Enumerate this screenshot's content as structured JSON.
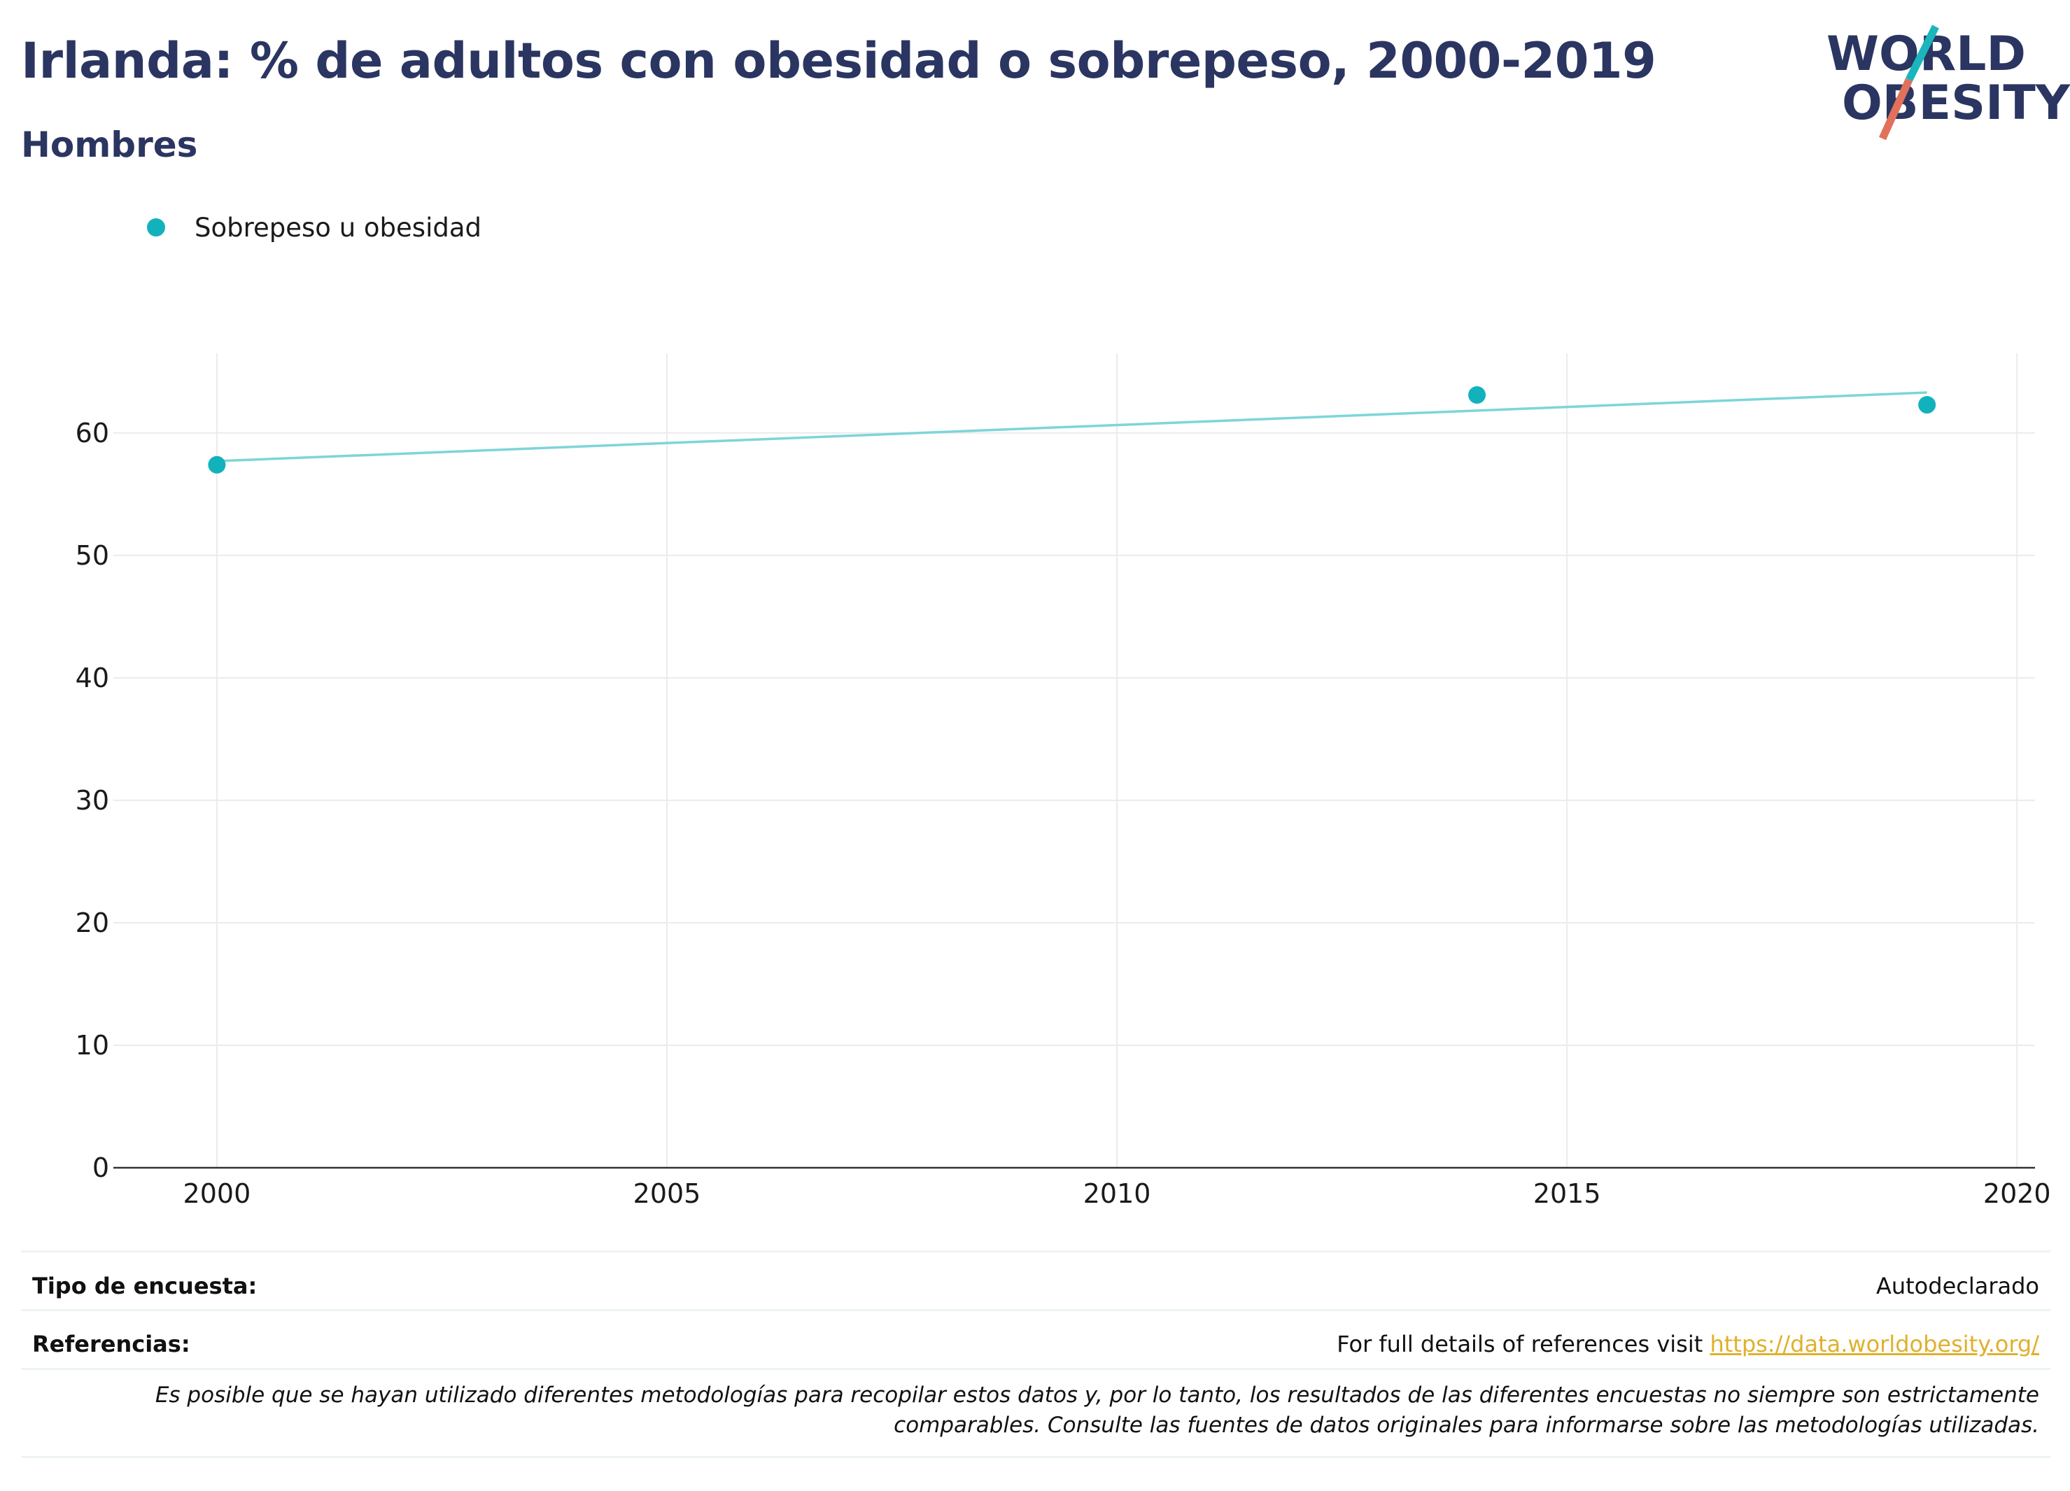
{
  "title": "Irlanda: % de adultos con obesidad o sobrepeso, 2000-2019",
  "subtitle": "Hombres",
  "logo": {
    "line1": "WORLD",
    "line2": "OBESITY",
    "colors": {
      "text": "#2b3561",
      "slash_teal": "#1ab5bd",
      "slash_red": "#e2715c"
    }
  },
  "legend": {
    "label": "Sobrepeso u obesidad",
    "color": "#12b2bd"
  },
  "chart_data": {
    "type": "scatter",
    "series": [
      {
        "name": "Sobrepeso u obesidad",
        "x": [
          2000,
          2014,
          2019
        ],
        "y": [
          57.4,
          63.1,
          62.3
        ],
        "color": "#12b2bd"
      }
    ],
    "trendline": {
      "x": [
        2000,
        2019
      ],
      "y": [
        57.7,
        63.3
      ],
      "color": "#7dd5d9"
    },
    "xlim": [
      1998.85,
      2020.2
    ],
    "ylim": [
      0,
      66.5
    ],
    "x_ticks": [
      2000,
      2005,
      2010,
      2015,
      2020
    ],
    "y_ticks": [
      0,
      10,
      20,
      30,
      40,
      50,
      60
    ],
    "grid": true,
    "legend_position": "top-left"
  },
  "footer": {
    "survey_type_label": "Tipo de encuesta:",
    "survey_type_value": "Autodeclarado",
    "references_label": "Referencias:",
    "references_text": "For full details of references visit ",
    "references_link": "https://data.worldobesity.org/",
    "disclaimer_line1": "Es posible que se hayan utilizado diferentes metodologías para recopilar estos datos y, por lo tanto, los resultados de las diferentes encuestas no siempre son estrictamente",
    "disclaimer_line2": "comparables. Consulte las fuentes de datos originales para informarse sobre las metodologías utilizadas."
  }
}
